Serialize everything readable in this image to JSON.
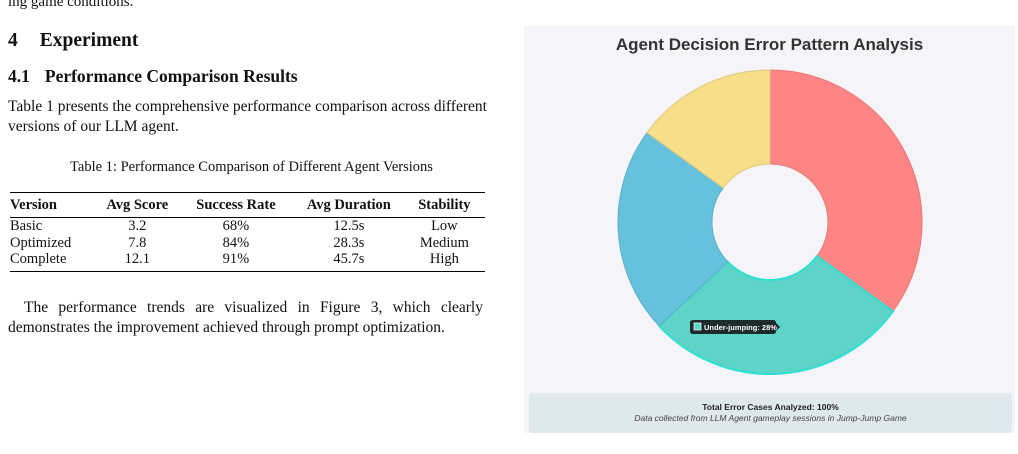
{
  "top_fragment": "ing game conditions.",
  "bottom_fragment": "",
  "section": {
    "number": "4",
    "title": "Experiment"
  },
  "subsection": {
    "number": "4.1",
    "title": "Performance Comparison Results"
  },
  "intro_text": "Table 1 presents the comprehensive performance comparison across different versions of our LLM agent.",
  "table": {
    "caption": "Table 1: Performance Comparison of Different Agent Versions",
    "headers": [
      "Version",
      "Avg Score",
      "Success Rate",
      "Avg Duration",
      "Stability"
    ],
    "rows": [
      [
        "Basic",
        "3.2",
        "68%",
        "12.5s",
        "Low"
      ],
      [
        "Optimized",
        "7.8",
        "84%",
        "28.3s",
        "Medium"
      ],
      [
        "Complete",
        "12.1",
        "91%",
        "45.7s",
        "High"
      ]
    ]
  },
  "trend_text": "The performance trends are visualized in Figure 3, which clearly demonstrates the improvement achieved through prompt optimization.",
  "chart_data": {
    "type": "pie",
    "title": "Agent Decision Error Pattern Analysis",
    "donut": true,
    "slices": [
      {
        "value": 35,
        "color": "#ff8585"
      },
      {
        "value": 28,
        "color": "#5ed3c8"
      },
      {
        "value": 22,
        "color": "#66c1dc"
      },
      {
        "value": 15,
        "color": "#f7de88"
      }
    ],
    "tooltip": "Under-jumping: 28%",
    "tooltip_color": "#5ed3c8",
    "footer_main": "Total Error Cases Analyzed: 100%",
    "footer_sub": "Data collected from LLM Agent gameplay sessions in Jump-Jump Game"
  }
}
